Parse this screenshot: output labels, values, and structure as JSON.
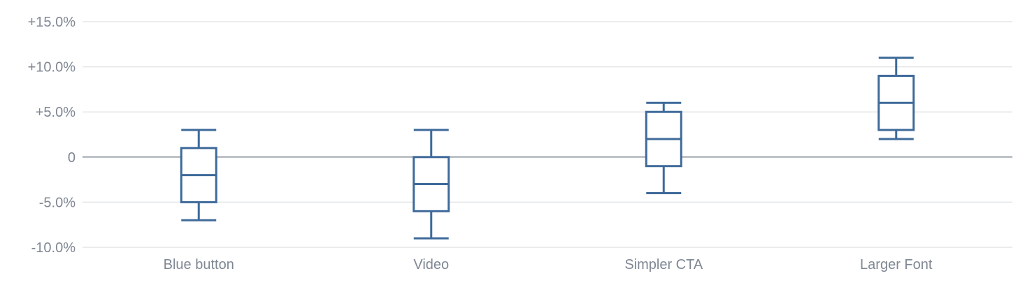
{
  "chart_data": {
    "type": "boxplot",
    "title": "",
    "xlabel": "",
    "ylabel": "",
    "ylim": [
      -10,
      15
    ],
    "y_ticks": [
      {
        "value": 15,
        "label": "+15.0%"
      },
      {
        "value": 10,
        "label": "+10.0%"
      },
      {
        "value": 5,
        "label": "+5.0%"
      },
      {
        "value": 0,
        "label": "0"
      },
      {
        "value": -5,
        "label": "-5.0%"
      },
      {
        "value": -10,
        "label": "-10.0%"
      }
    ],
    "categories": [
      "Blue button",
      "Video",
      "Simpler CTA",
      "Larger Font"
    ],
    "boxes": [
      {
        "category": "Blue button",
        "min": -7,
        "q1": -5,
        "median": -2,
        "q3": 1,
        "max": 3
      },
      {
        "category": "Video",
        "min": -9,
        "q1": -6,
        "median": -3,
        "q3": 0,
        "max": 3
      },
      {
        "category": "Simpler CTA",
        "min": -4,
        "q1": -1,
        "median": 2,
        "q3": 5,
        "max": 6
      },
      {
        "category": "Larger Font",
        "min": 2,
        "q1": 3,
        "median": 6,
        "q3": 9,
        "max": 11
      }
    ],
    "grid": true,
    "legend": "none",
    "colors": {
      "box": "#3e6a9a",
      "grid": "#e3e5e8",
      "zero_line": "#7f8793",
      "labels": "#7f8793"
    }
  }
}
